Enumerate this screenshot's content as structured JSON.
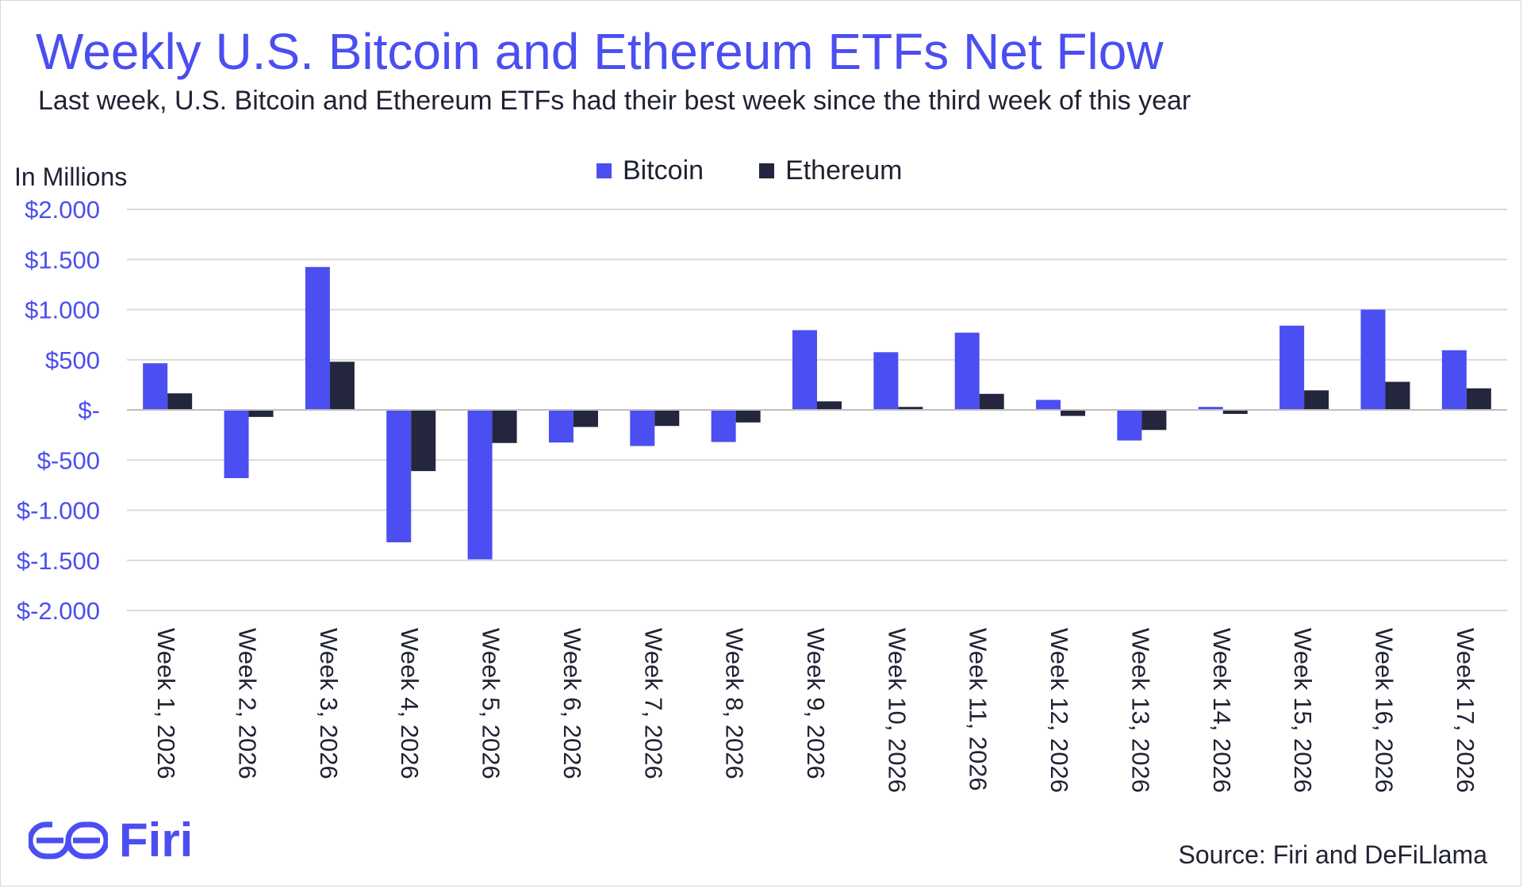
{
  "header": {
    "title": "Weekly U.S. Bitcoin and Ethereum ETFs Net Flow",
    "subtitle": "Last week, U.S. Bitcoin and Ethereum ETFs had their best week since the third week of this year"
  },
  "footer": {
    "logo_text": "Firi",
    "source": "Source: Firi and DeFiLlama"
  },
  "colors": {
    "bitcoin": "#4b4ef0",
    "ethereum": "#23263d",
    "axis_label": "#4b4ef0",
    "gridline": "#d9d9d9"
  },
  "chart_data": {
    "type": "bar",
    "title": "Weekly U.S. Bitcoin and Ethereum ETFs Net Flow",
    "subtitle": "Last week, U.S. Bitcoin and Ethereum ETFs had their best week since the third week of this year",
    "ylabel": "In Millions",
    "xlabel": "",
    "ylim": [
      -2000,
      2000
    ],
    "yticks": [
      2000,
      1500,
      1000,
      500,
      0,
      -500,
      -1000,
      -1500,
      -2000
    ],
    "ytick_labels": [
      "$2.000",
      "$1.500",
      "$1.000",
      "$500",
      "$-",
      "$-500",
      "$-1.000",
      "$-1.500",
      "$-2.000"
    ],
    "grid": true,
    "legend_position": "top-center",
    "categories": [
      "Week 1, 2026",
      "Week 2, 2026",
      "Week 3, 2026",
      "Week 4, 2026",
      "Week 5, 2026",
      "Week 6, 2026",
      "Week 7, 2026",
      "Week 8, 2026",
      "Week 9, 2026",
      "Week 10, 2026",
      "Week 11, 2026",
      "Week 12, 2026",
      "Week 13, 2026",
      "Week 14, 2026",
      "Week 15, 2026",
      "Week 16, 2026",
      "Week 17, 2026"
    ],
    "series": [
      {
        "name": "Bitcoin",
        "values": [
          465,
          -680,
          1425,
          -1320,
          -1490,
          -325,
          -360,
          -320,
          795,
          575,
          770,
          100,
          -305,
          30,
          840,
          1000,
          595
        ]
      },
      {
        "name": "Ethereum",
        "values": [
          165,
          -70,
          480,
          -610,
          -330,
          -170,
          -160,
          -125,
          85,
          30,
          160,
          -60,
          -200,
          -40,
          195,
          280,
          215
        ]
      }
    ]
  }
}
